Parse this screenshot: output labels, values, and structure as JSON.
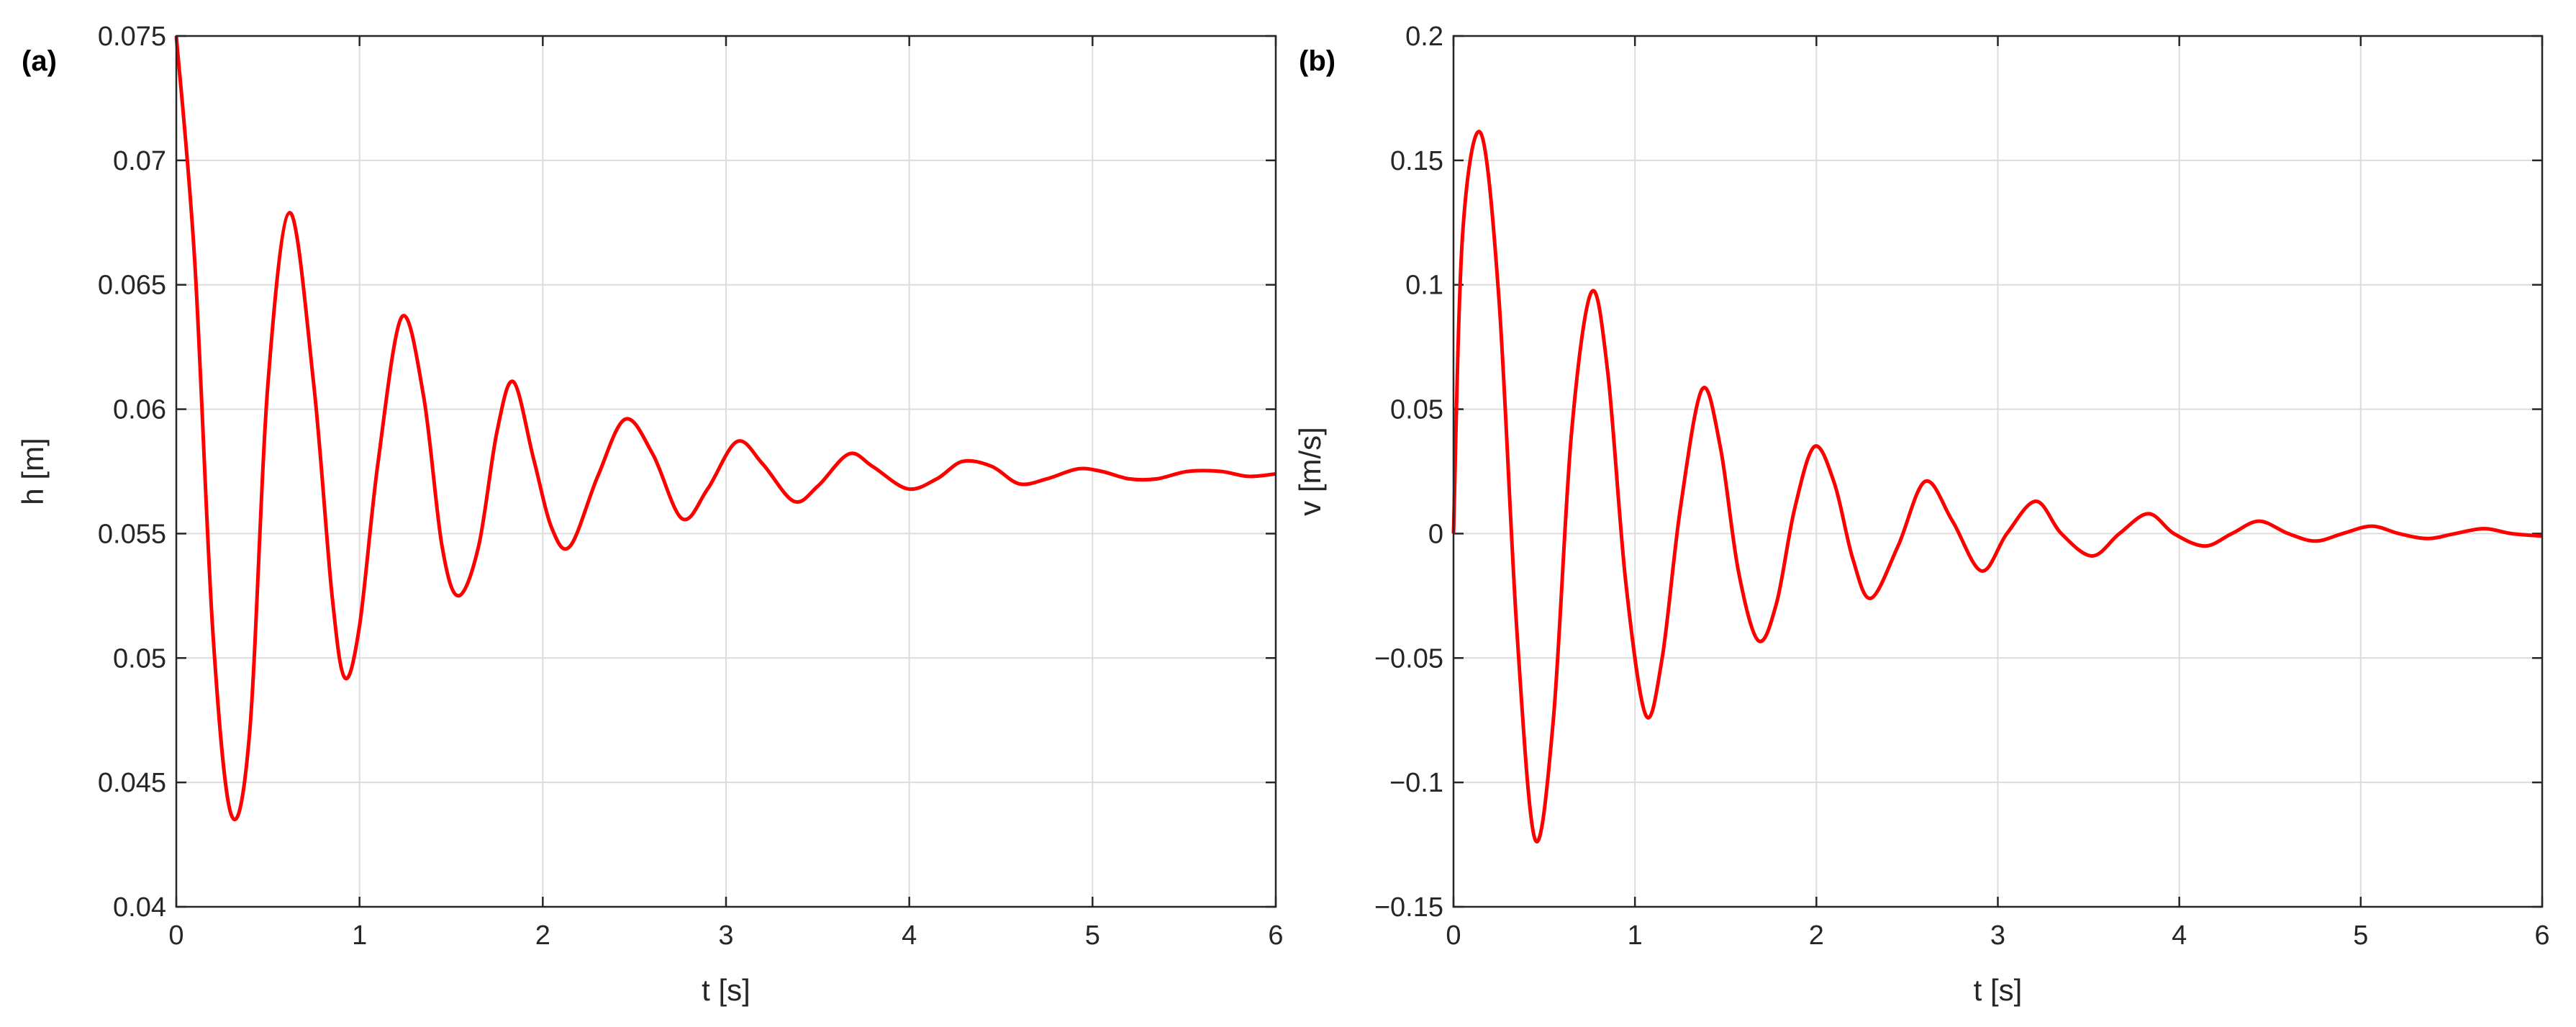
{
  "chart_data": [
    {
      "type": "line",
      "panel_label": "(a)",
      "title": "",
      "xlabel": "t [s]",
      "ylabel": "h [m]",
      "xlim": [
        0,
        6
      ],
      "ylim": [
        0.04,
        0.075
      ],
      "xticks": [
        0,
        1,
        2,
        3,
        4,
        5,
        6
      ],
      "yticks": [
        0.04,
        0.045,
        0.05,
        0.055,
        0.06,
        0.065,
        0.07,
        0.075
      ],
      "xtick_labels": [
        "0",
        "1",
        "2",
        "3",
        "4",
        "5",
        "6"
      ],
      "ytick_labels": [
        "0.04",
        "0.045",
        "0.05",
        "0.055",
        "0.06",
        "0.065",
        "0.07",
        "0.075"
      ],
      "grid": true,
      "color": "#ff0000",
      "series": [
        {
          "x": [
            0,
            0.1,
            0.2,
            0.3,
            0.4,
            0.5,
            0.62,
            0.75,
            0.85,
            0.92,
            1.0,
            1.1,
            1.23,
            1.35,
            1.45,
            1.54,
            1.65,
            1.75,
            1.84,
            1.95,
            2.05,
            2.15,
            2.3,
            2.45,
            2.6,
            2.76,
            2.9,
            3.06,
            3.2,
            3.37,
            3.5,
            3.67,
            3.8,
            3.99,
            4.15,
            4.29,
            4.45,
            4.6,
            4.75,
            4.92,
            5.05,
            5.2,
            5.35,
            5.52,
            5.7,
            5.85,
            6.0
          ],
          "y": [
            0.075,
            0.066,
            0.051,
            0.0437,
            0.047,
            0.061,
            0.0679,
            0.061,
            0.0525,
            0.0492,
            0.0513,
            0.0578,
            0.0637,
            0.0605,
            0.0545,
            0.0525,
            0.0545,
            0.0591,
            0.0611,
            0.058,
            0.0552,
            0.0545,
            0.0573,
            0.0596,
            0.0582,
            0.0556,
            0.0568,
            0.0587,
            0.0578,
            0.0563,
            0.0569,
            0.0582,
            0.0577,
            0.0568,
            0.0572,
            0.0579,
            0.0577,
            0.057,
            0.0572,
            0.0576,
            0.0575,
            0.0572,
            0.0572,
            0.0575,
            0.0575,
            0.0573,
            0.0574
          ]
        }
      ]
    },
    {
      "type": "line",
      "panel_label": "(b)",
      "title": "",
      "xlabel": "t [s]",
      "ylabel": "v [m/s]",
      "xlim": [
        0,
        6
      ],
      "ylim": [
        -0.15,
        0.2
      ],
      "xticks": [
        0,
        1,
        2,
        3,
        4,
        5,
        6
      ],
      "yticks": [
        -0.15,
        -0.1,
        -0.05,
        0,
        0.05,
        0.1,
        0.15,
        0.2
      ],
      "xtick_labels": [
        "0",
        "1",
        "2",
        "3",
        "4",
        "5",
        "6"
      ],
      "ytick_labels": [
        "−0.15",
        "−0.1",
        "−0.05",
        "0",
        "0.05",
        "0.1",
        "0.15",
        "0.2"
      ],
      "grid": true,
      "color": "#ff0000",
      "series": [
        {
          "x": [
            0,
            0.05,
            0.15,
            0.25,
            0.35,
            0.45,
            0.55,
            0.65,
            0.76,
            0.85,
            0.95,
            1.06,
            1.15,
            1.25,
            1.37,
            1.47,
            1.57,
            1.68,
            1.78,
            1.88,
            1.99,
            2.1,
            2.2,
            2.3,
            2.45,
            2.6,
            2.75,
            2.91,
            3.05,
            3.21,
            3.35,
            3.52,
            3.67,
            3.83,
            3.97,
            4.14,
            4.29,
            4.44,
            4.6,
            4.75,
            4.9,
            5.06,
            5.21,
            5.37,
            5.52,
            5.68,
            5.83,
            6.0
          ],
          "y": [
            0,
            0.12,
            0.161,
            0.095,
            -0.04,
            -0.123,
            -0.075,
            0.04,
            0.097,
            0.065,
            -0.02,
            -0.073,
            -0.05,
            0.01,
            0.058,
            0.035,
            -0.015,
            -0.043,
            -0.028,
            0.01,
            0.035,
            0.02,
            -0.01,
            -0.026,
            -0.005,
            0.021,
            0.005,
            -0.015,
            0.0,
            0.013,
            0.0,
            -0.009,
            0.0,
            0.008,
            0.0,
            -0.005,
            0.0,
            0.005,
            0.0,
            -0.003,
            0.0,
            0.003,
            0.0,
            -0.002,
            0.0,
            0.002,
            0.0,
            -0.001
          ]
        }
      ]
    }
  ]
}
